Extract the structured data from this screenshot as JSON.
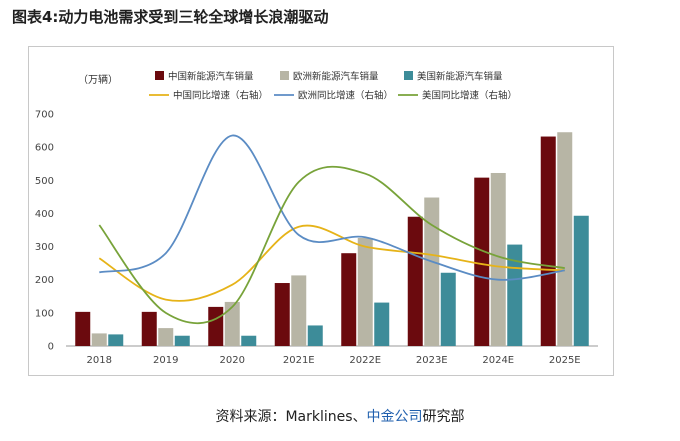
{
  "title": "图表4:动力电池需求受到三轮全球增长浪潮驱动",
  "source": {
    "prefix": "资料来源：Marklines、",
    "highlight": "中金公司",
    "suffix": "研究部"
  },
  "chart_data": {
    "type": "bar",
    "unit_label": "（万辆）",
    "categories": [
      "2018",
      "2019",
      "2020",
      "2021E",
      "2022E",
      "2023E",
      "2024E",
      "2025E"
    ],
    "ylim": [
      0,
      700
    ],
    "yticks": [
      0,
      100,
      200,
      300,
      400,
      500,
      600,
      700
    ],
    "legend_position": "top",
    "series": [
      {
        "name": "中国新能源汽车销量",
        "kind": "bar",
        "color": "#6b0a0e",
        "values": [
          103,
          103,
          118,
          190,
          280,
          390,
          508,
          632
        ]
      },
      {
        "name": "欧洲新能源汽车销量",
        "kind": "bar",
        "color": "#b7b5a5",
        "values": [
          38,
          54,
          133,
          213,
          326,
          448,
          522,
          645
        ]
      },
      {
        "name": "美国新能源汽车销量",
        "kind": "bar",
        "color": "#3d8c99",
        "values": [
          35,
          31,
          31,
          62,
          131,
          221,
          306,
          393
        ]
      },
      {
        "name": "中国同比增速（右轴）",
        "kind": "line",
        "color": "#e6b318",
        "values": [
          265,
          140,
          185,
          360,
          300,
          275,
          240,
          228
        ]
      },
      {
        "name": "欧洲同比增速（右轴）",
        "kind": "line",
        "color": "#5b8cc4",
        "values": [
          222,
          280,
          635,
          335,
          328,
          255,
          200,
          228
        ]
      },
      {
        "name": "美国同比增速（右轴）",
        "kind": "line",
        "color": "#78a33a",
        "values": [
          365,
          100,
          118,
          495,
          520,
          365,
          270,
          235
        ]
      }
    ]
  }
}
